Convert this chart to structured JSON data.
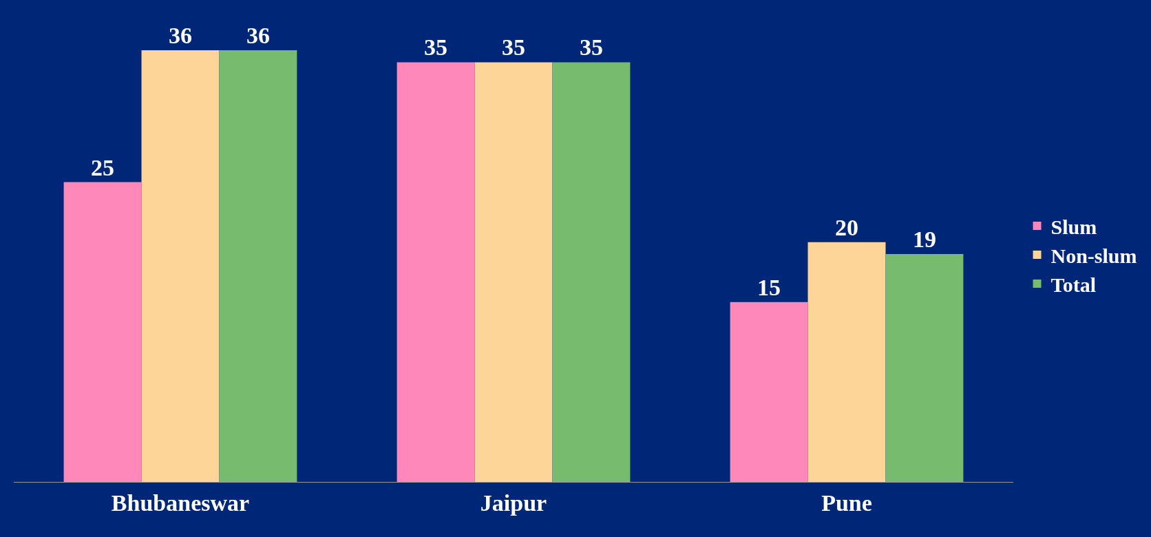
{
  "chart_data": {
    "type": "bar",
    "categories": [
      "Bhubaneswar",
      "Jaipur",
      "Pune"
    ],
    "series": [
      {
        "name": "Slum",
        "color": "#ff88bb",
        "values": [
          25,
          35,
          15
        ]
      },
      {
        "name": "Non-slum",
        "color": "#fdd598",
        "values": [
          36,
          35,
          20
        ]
      },
      {
        "name": "Total",
        "color": "#77bb6e",
        "values": [
          36,
          35,
          19
        ]
      }
    ],
    "data_labels": true,
    "legend": "right"
  }
}
